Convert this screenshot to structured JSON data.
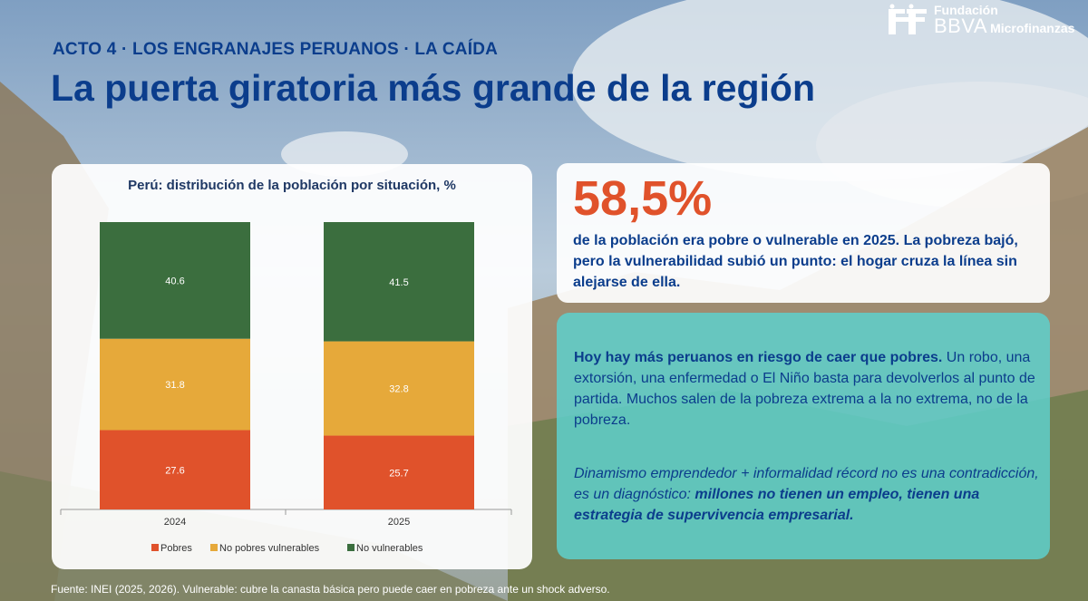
{
  "header": {
    "kicker": "ACTO 4 · LOS ENGRANAJES PERUANOS · LA CAÍDA",
    "title": "La puerta giratoria más grande de la región",
    "logo_line1": "Fundación",
    "logo_line2": "BBVA",
    "logo_line2_suffix": "Microfinanzas"
  },
  "chart_data": {
    "type": "bar",
    "stacked": true,
    "title": "Perú: distribución de la población por situación, %",
    "categories": [
      "2024",
      "2025"
    ],
    "series": [
      {
        "name": "Pobres",
        "color": "#e0522b",
        "values": [
          27.6,
          25.7
        ]
      },
      {
        "name": "No pobres vulnerables",
        "color": "#e6a93a",
        "values": [
          31.8,
          32.8
        ]
      },
      {
        "name": "No vulnerables",
        "color": "#3b6e3e",
        "values": [
          40.6,
          41.5
        ]
      }
    ],
    "ylim": [
      0,
      100
    ],
    "grid": false,
    "legend": "bottom"
  },
  "highlight": {
    "value": "58,5%",
    "text": "de la población era pobre o vulnerable en 2025. La pobreza bajó, pero la vulnerabilidad subió un punto: el hogar cruza la línea sin alejarse de ella."
  },
  "insight": {
    "p1_bold": "Hoy hay más peruanos en riesgo de caer que pobres.",
    "p1_rest": " Un robo, una extorsión, una enfermedad o El Niño basta para devolverlos al punto de partida. Muchos salen de la pobreza extrema a la no extrema, no de la pobreza.",
    "p2_italic": "Dinamismo emprendedor + informalidad récord no es una contradicción, es un diagnóstico: ",
    "p2_bold": "millones no tienen un empleo, tienen una estrategia de supervivencia empresarial."
  },
  "footnote": "Fuente: INEI (2025, 2026). Vulnerable: cubre la canasta básica pero puede caer en pobreza ante un shock adverso."
}
